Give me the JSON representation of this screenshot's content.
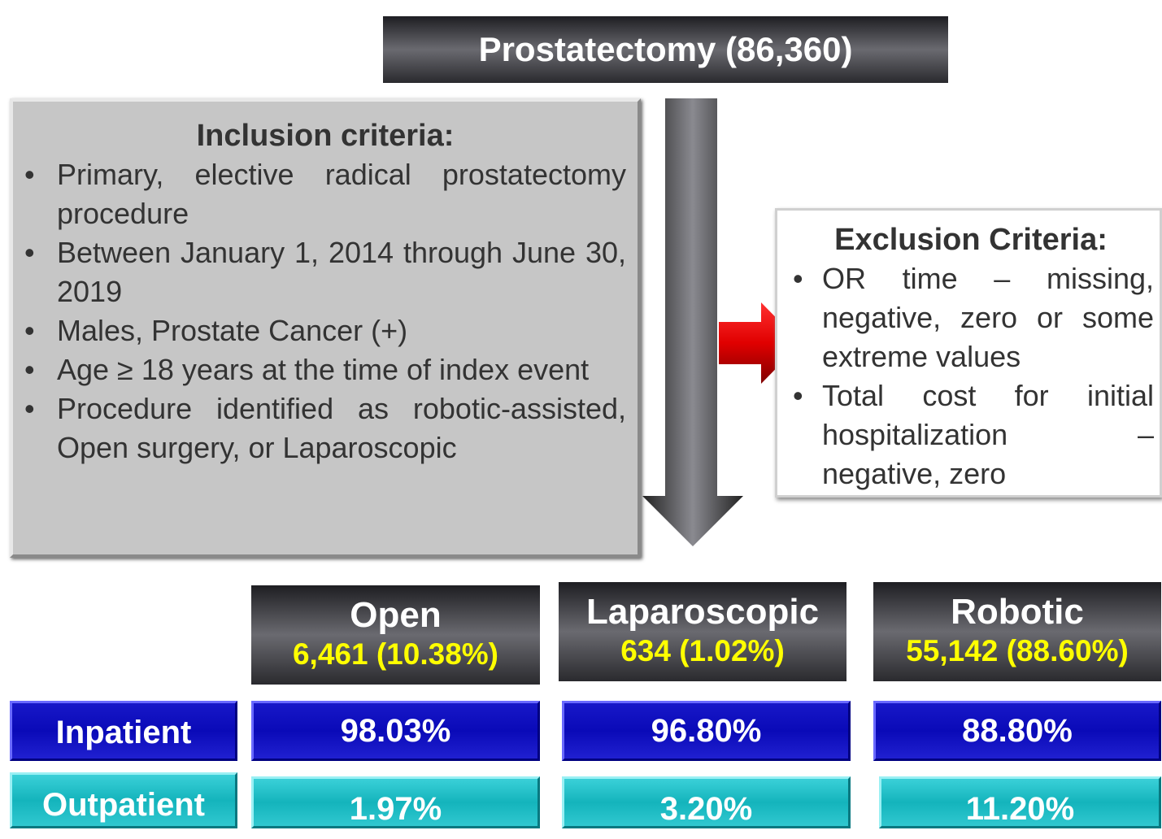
{
  "title": "Prostatectomy (86,360)",
  "inclusion": {
    "title": "Inclusion criteria:",
    "items": [
      "Primary, elective radical prostatectomy procedure",
      "Between January 1, 2014 through June 30, 2019",
      "Males, Prostate Cancer (+)",
      "Age ≥ 18 years at the time of index event",
      "Procedure identified as robotic-assisted, Open surgery, or Laparoscopic"
    ]
  },
  "exclusion": {
    "title": "Exclusion Criteria:",
    "items": [
      "OR time – missing, negative, zero or some extreme values",
      "Total cost for initial hospitalization – negative, zero"
    ]
  },
  "groups": [
    {
      "name": "Open",
      "count": "6,461 (10.38%)"
    },
    {
      "name": "Laparoscopic",
      "count": "634 (1.02%)"
    },
    {
      "name": "Robotic",
      "count": "55,142 (88.60%)"
    }
  ],
  "rows": [
    {
      "label": "Inpatient",
      "values": [
        "98.03%",
        "96.80%",
        "88.80%"
      ]
    },
    {
      "label": "Outpatient",
      "values": [
        "1.97%",
        "3.20%",
        "11.20%"
      ]
    }
  ]
}
